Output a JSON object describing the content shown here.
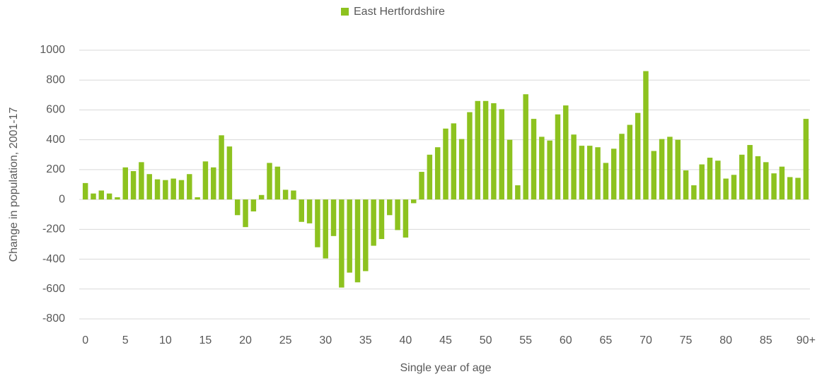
{
  "chart_data": {
    "type": "bar",
    "legend_label": "East Hertfordshire",
    "color": "#8dc21f",
    "ylabel": "Change in population, 2001-17",
    "xlabel": "Single year of age",
    "categories": [
      "0",
      null,
      null,
      null,
      null,
      "5",
      null,
      null,
      null,
      null,
      "10",
      null,
      null,
      null,
      null,
      "15",
      null,
      null,
      null,
      null,
      "20",
      null,
      null,
      null,
      null,
      "25",
      null,
      null,
      null,
      null,
      "30",
      null,
      null,
      null,
      null,
      "35",
      null,
      null,
      null,
      null,
      "40",
      null,
      null,
      null,
      null,
      "45",
      null,
      null,
      null,
      null,
      "50",
      null,
      null,
      null,
      null,
      "55",
      null,
      null,
      null,
      null,
      "60",
      null,
      null,
      null,
      null,
      "65",
      null,
      null,
      null,
      null,
      "70",
      null,
      null,
      null,
      null,
      "75",
      null,
      null,
      null,
      null,
      "80",
      null,
      null,
      null,
      null,
      "85",
      null,
      null,
      null,
      null,
      "90+"
    ],
    "values": [
      110,
      40,
      60,
      40,
      15,
      215,
      190,
      250,
      170,
      135,
      130,
      140,
      130,
      170,
      15,
      255,
      215,
      430,
      355,
      -105,
      -185,
      -80,
      30,
      245,
      220,
      65,
      60,
      -150,
      -160,
      -320,
      -395,
      -245,
      -590,
      -490,
      -555,
      -480,
      -310,
      -265,
      -105,
      -205,
      -255,
      -25,
      185,
      300,
      350,
      475,
      510,
      405,
      585,
      660,
      660,
      645,
      605,
      400,
      95,
      705,
      540,
      420,
      395,
      570,
      630,
      435,
      360,
      360,
      350,
      245,
      340,
      440,
      500,
      580,
      860,
      325,
      405,
      420,
      400,
      195,
      95,
      235,
      280,
      260,
      140,
      165,
      300,
      365,
      290,
      250,
      175,
      220,
      150,
      145,
      540
    ],
    "ylim": [
      -800,
      1000
    ],
    "yticks": [
      -800,
      -600,
      -400,
      -200,
      0,
      200,
      400,
      600,
      800,
      1000
    ],
    "grid": true,
    "legend_position": "top"
  }
}
